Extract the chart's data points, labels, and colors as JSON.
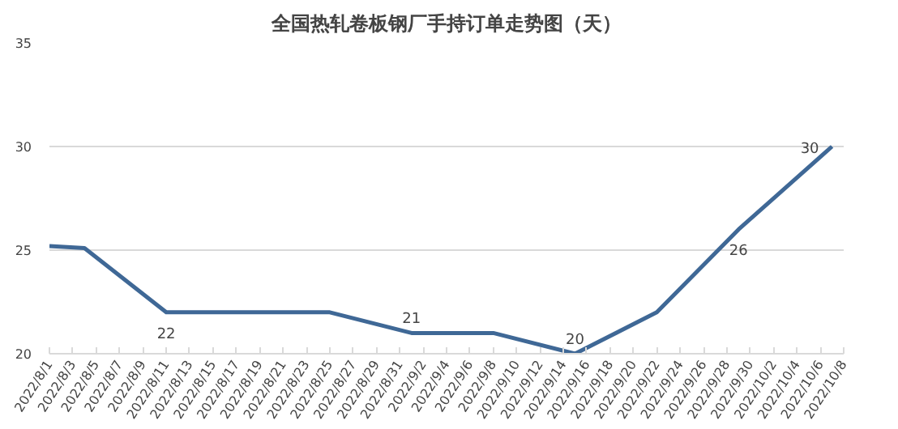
{
  "chart_data": {
    "type": "line",
    "title": "全国热轧卷板钢厂手持订单走势图（天）",
    "x": [
      "2022-08-01",
      "2022-08-04",
      "2022-08-11",
      "2022-08-18",
      "2022-08-25",
      "2022-09-01",
      "2022-09-08",
      "2022-09-15",
      "2022-09-22",
      "2022-09-29",
      "2022-10-07"
    ],
    "series": [
      {
        "color": "#3f6896",
        "values": [
          25.2,
          25.1,
          22,
          22,
          22,
          21,
          21,
          20,
          22,
          26,
          30
        ],
        "value_labels": [
          null,
          null,
          "22",
          null,
          null,
          "21",
          null,
          "20",
          null,
          "26",
          "30"
        ]
      }
    ],
    "xlim": [
      "2022-08-01",
      "2022-10-08"
    ],
    "xticks": [
      {
        "value": "2022-08-01",
        "label": "2022/8/1"
      },
      {
        "value": "2022-08-03",
        "label": "2022/8/3"
      },
      {
        "value": "2022-08-05",
        "label": "2022/8/5"
      },
      {
        "value": "2022-08-07",
        "label": "2022/8/7"
      },
      {
        "value": "2022-08-09",
        "label": "2022/8/9"
      },
      {
        "value": "2022-08-11",
        "label": "2022/8/11"
      },
      {
        "value": "2022-08-13",
        "label": "2022/8/13"
      },
      {
        "value": "2022-08-15",
        "label": "2022/8/15"
      },
      {
        "value": "2022-08-17",
        "label": "2022/8/17"
      },
      {
        "value": "2022-08-19",
        "label": "2022/8/19"
      },
      {
        "value": "2022-08-21",
        "label": "2022/8/21"
      },
      {
        "value": "2022-08-23",
        "label": "2022/8/23"
      },
      {
        "value": "2022-08-25",
        "label": "2022/8/25"
      },
      {
        "value": "2022-08-27",
        "label": "2022/8/27"
      },
      {
        "value": "2022-08-29",
        "label": "2022/8/29"
      },
      {
        "value": "2022-08-31",
        "label": "2022/8/31"
      },
      {
        "value": "2022-09-02",
        "label": "2022/9/2"
      },
      {
        "value": "2022-09-04",
        "label": "2022/9/4"
      },
      {
        "value": "2022-09-06",
        "label": "2022/9/6"
      },
      {
        "value": "2022-09-08",
        "label": "2022/9/8"
      },
      {
        "value": "2022-09-10",
        "label": "2022/9/10"
      },
      {
        "value": "2022-09-12",
        "label": "2022/9/12"
      },
      {
        "value": "2022-09-14",
        "label": "2022/9/14"
      },
      {
        "value": "2022-09-16",
        "label": "2022/9/16"
      },
      {
        "value": "2022-09-18",
        "label": "2022/9/18"
      },
      {
        "value": "2022-09-20",
        "label": "2022/9/20"
      },
      {
        "value": "2022-09-22",
        "label": "2022/9/22"
      },
      {
        "value": "2022-09-24",
        "label": "2022/9/24"
      },
      {
        "value": "2022-09-26",
        "label": "2022/9/26"
      },
      {
        "value": "2022-09-28",
        "label": "2022/9/28"
      },
      {
        "value": "2022-09-30",
        "label": "2022/9/30"
      },
      {
        "value": "2022-10-02",
        "label": "2022/10/2"
      },
      {
        "value": "2022-10-04",
        "label": "2022/10/4"
      },
      {
        "value": "2022-10-06",
        "label": "2022/10/6"
      },
      {
        "value": "2022-10-08",
        "label": "2022/10/8"
      }
    ],
    "ylim": [
      20,
      35
    ],
    "yticks": [
      20,
      25,
      30,
      35
    ],
    "grid": "y",
    "marker": "none",
    "line_style": "solid"
  }
}
